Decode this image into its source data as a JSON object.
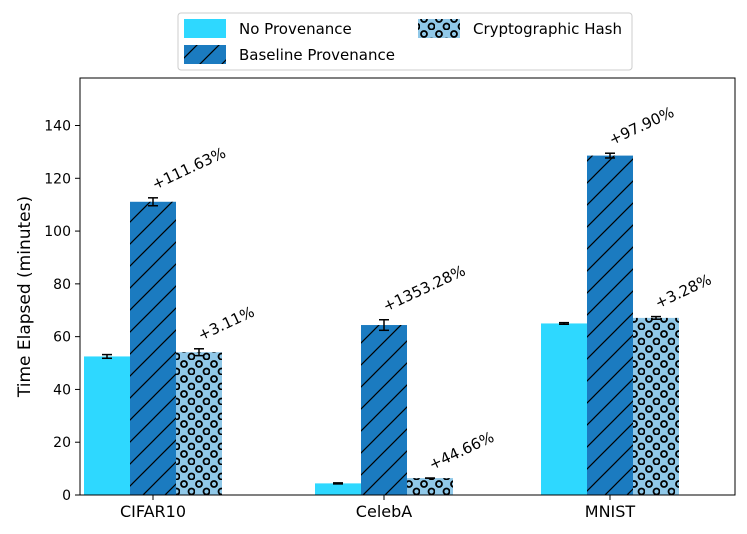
{
  "chart_data": {
    "type": "bar",
    "title": "",
    "xlabel": "",
    "ylabel": "Time Elapsed (minutes)",
    "ylim": [
      0,
      158
    ],
    "yticks": [
      0,
      20,
      40,
      60,
      80,
      100,
      120,
      140
    ],
    "categories": [
      "CIFAR10",
      "CelebA",
      "MNIST"
    ],
    "legend_position": "top-center",
    "series": [
      {
        "name": "No Provenance",
        "color": "#2ed8ff",
        "hatch": "none",
        "values": [
          52.5,
          4.4,
          65.0
        ],
        "errors": [
          0.7,
          0.2,
          0.3
        ],
        "labels": [
          "",
          "",
          ""
        ]
      },
      {
        "name": "Baseline Provenance",
        "color": "#1b7bc0",
        "hatch": "diagonal",
        "values": [
          111.1,
          64.4,
          128.6
        ],
        "errors": [
          1.5,
          2.0,
          0.9
        ],
        "labels": [
          "+111.63%",
          "+1353.28%",
          "+97.90%"
        ]
      },
      {
        "name": "Cryptographic Hash",
        "color": "#90c8e8",
        "hatch": "circles",
        "values": [
          54.1,
          6.4,
          67.1
        ],
        "errors": [
          1.3,
          0.0,
          0.5
        ],
        "labels": [
          "+3.11%",
          "+44.66%",
          "+3.28%"
        ]
      }
    ]
  }
}
